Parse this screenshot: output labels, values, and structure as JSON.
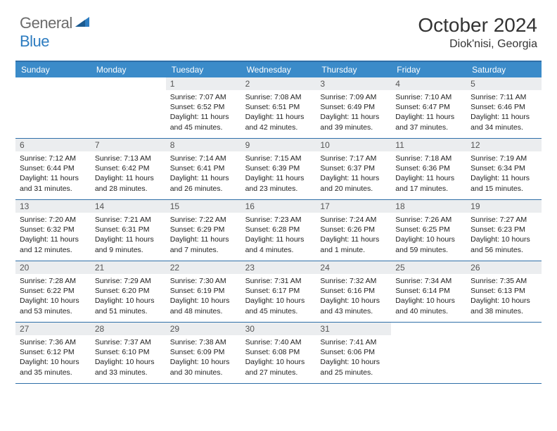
{
  "logo": {
    "text1": "General",
    "text2": "Blue"
  },
  "title": "October 2024",
  "location": "Diok'nisi, Georgia",
  "colors": {
    "header_bar": "#3b8bc9",
    "rule": "#2f6fa8",
    "daynum_bg": "#ebedef",
    "logo_gray": "#6b6b6b",
    "logo_blue": "#2d7cc0"
  },
  "dow": [
    "Sunday",
    "Monday",
    "Tuesday",
    "Wednesday",
    "Thursday",
    "Friday",
    "Saturday"
  ],
  "weeks": [
    [
      {
        "empty": true
      },
      {
        "empty": true
      },
      {
        "n": "1",
        "sr": "Sunrise: 7:07 AM",
        "ss": "Sunset: 6:52 PM",
        "dl1": "Daylight: 11 hours",
        "dl2": "and 45 minutes."
      },
      {
        "n": "2",
        "sr": "Sunrise: 7:08 AM",
        "ss": "Sunset: 6:51 PM",
        "dl1": "Daylight: 11 hours",
        "dl2": "and 42 minutes."
      },
      {
        "n": "3",
        "sr": "Sunrise: 7:09 AM",
        "ss": "Sunset: 6:49 PM",
        "dl1": "Daylight: 11 hours",
        "dl2": "and 39 minutes."
      },
      {
        "n": "4",
        "sr": "Sunrise: 7:10 AM",
        "ss": "Sunset: 6:47 PM",
        "dl1": "Daylight: 11 hours",
        "dl2": "and 37 minutes."
      },
      {
        "n": "5",
        "sr": "Sunrise: 7:11 AM",
        "ss": "Sunset: 6:46 PM",
        "dl1": "Daylight: 11 hours",
        "dl2": "and 34 minutes."
      }
    ],
    [
      {
        "n": "6",
        "sr": "Sunrise: 7:12 AM",
        "ss": "Sunset: 6:44 PM",
        "dl1": "Daylight: 11 hours",
        "dl2": "and 31 minutes."
      },
      {
        "n": "7",
        "sr": "Sunrise: 7:13 AM",
        "ss": "Sunset: 6:42 PM",
        "dl1": "Daylight: 11 hours",
        "dl2": "and 28 minutes."
      },
      {
        "n": "8",
        "sr": "Sunrise: 7:14 AM",
        "ss": "Sunset: 6:41 PM",
        "dl1": "Daylight: 11 hours",
        "dl2": "and 26 minutes."
      },
      {
        "n": "9",
        "sr": "Sunrise: 7:15 AM",
        "ss": "Sunset: 6:39 PM",
        "dl1": "Daylight: 11 hours",
        "dl2": "and 23 minutes."
      },
      {
        "n": "10",
        "sr": "Sunrise: 7:17 AM",
        "ss": "Sunset: 6:37 PM",
        "dl1": "Daylight: 11 hours",
        "dl2": "and 20 minutes."
      },
      {
        "n": "11",
        "sr": "Sunrise: 7:18 AM",
        "ss": "Sunset: 6:36 PM",
        "dl1": "Daylight: 11 hours",
        "dl2": "and 17 minutes."
      },
      {
        "n": "12",
        "sr": "Sunrise: 7:19 AM",
        "ss": "Sunset: 6:34 PM",
        "dl1": "Daylight: 11 hours",
        "dl2": "and 15 minutes."
      }
    ],
    [
      {
        "n": "13",
        "sr": "Sunrise: 7:20 AM",
        "ss": "Sunset: 6:32 PM",
        "dl1": "Daylight: 11 hours",
        "dl2": "and 12 minutes."
      },
      {
        "n": "14",
        "sr": "Sunrise: 7:21 AM",
        "ss": "Sunset: 6:31 PM",
        "dl1": "Daylight: 11 hours",
        "dl2": "and 9 minutes."
      },
      {
        "n": "15",
        "sr": "Sunrise: 7:22 AM",
        "ss": "Sunset: 6:29 PM",
        "dl1": "Daylight: 11 hours",
        "dl2": "and 7 minutes."
      },
      {
        "n": "16",
        "sr": "Sunrise: 7:23 AM",
        "ss": "Sunset: 6:28 PM",
        "dl1": "Daylight: 11 hours",
        "dl2": "and 4 minutes."
      },
      {
        "n": "17",
        "sr": "Sunrise: 7:24 AM",
        "ss": "Sunset: 6:26 PM",
        "dl1": "Daylight: 11 hours",
        "dl2": "and 1 minute."
      },
      {
        "n": "18",
        "sr": "Sunrise: 7:26 AM",
        "ss": "Sunset: 6:25 PM",
        "dl1": "Daylight: 10 hours",
        "dl2": "and 59 minutes."
      },
      {
        "n": "19",
        "sr": "Sunrise: 7:27 AM",
        "ss": "Sunset: 6:23 PM",
        "dl1": "Daylight: 10 hours",
        "dl2": "and 56 minutes."
      }
    ],
    [
      {
        "n": "20",
        "sr": "Sunrise: 7:28 AM",
        "ss": "Sunset: 6:22 PM",
        "dl1": "Daylight: 10 hours",
        "dl2": "and 53 minutes."
      },
      {
        "n": "21",
        "sr": "Sunrise: 7:29 AM",
        "ss": "Sunset: 6:20 PM",
        "dl1": "Daylight: 10 hours",
        "dl2": "and 51 minutes."
      },
      {
        "n": "22",
        "sr": "Sunrise: 7:30 AM",
        "ss": "Sunset: 6:19 PM",
        "dl1": "Daylight: 10 hours",
        "dl2": "and 48 minutes."
      },
      {
        "n": "23",
        "sr": "Sunrise: 7:31 AM",
        "ss": "Sunset: 6:17 PM",
        "dl1": "Daylight: 10 hours",
        "dl2": "and 45 minutes."
      },
      {
        "n": "24",
        "sr": "Sunrise: 7:32 AM",
        "ss": "Sunset: 6:16 PM",
        "dl1": "Daylight: 10 hours",
        "dl2": "and 43 minutes."
      },
      {
        "n": "25",
        "sr": "Sunrise: 7:34 AM",
        "ss": "Sunset: 6:14 PM",
        "dl1": "Daylight: 10 hours",
        "dl2": "and 40 minutes."
      },
      {
        "n": "26",
        "sr": "Sunrise: 7:35 AM",
        "ss": "Sunset: 6:13 PM",
        "dl1": "Daylight: 10 hours",
        "dl2": "and 38 minutes."
      }
    ],
    [
      {
        "n": "27",
        "sr": "Sunrise: 7:36 AM",
        "ss": "Sunset: 6:12 PM",
        "dl1": "Daylight: 10 hours",
        "dl2": "and 35 minutes."
      },
      {
        "n": "28",
        "sr": "Sunrise: 7:37 AM",
        "ss": "Sunset: 6:10 PM",
        "dl1": "Daylight: 10 hours",
        "dl2": "and 33 minutes."
      },
      {
        "n": "29",
        "sr": "Sunrise: 7:38 AM",
        "ss": "Sunset: 6:09 PM",
        "dl1": "Daylight: 10 hours",
        "dl2": "and 30 minutes."
      },
      {
        "n": "30",
        "sr": "Sunrise: 7:40 AM",
        "ss": "Sunset: 6:08 PM",
        "dl1": "Daylight: 10 hours",
        "dl2": "and 27 minutes."
      },
      {
        "n": "31",
        "sr": "Sunrise: 7:41 AM",
        "ss": "Sunset: 6:06 PM",
        "dl1": "Daylight: 10 hours",
        "dl2": "and 25 minutes."
      },
      {
        "empty": true
      },
      {
        "empty": true
      }
    ]
  ]
}
